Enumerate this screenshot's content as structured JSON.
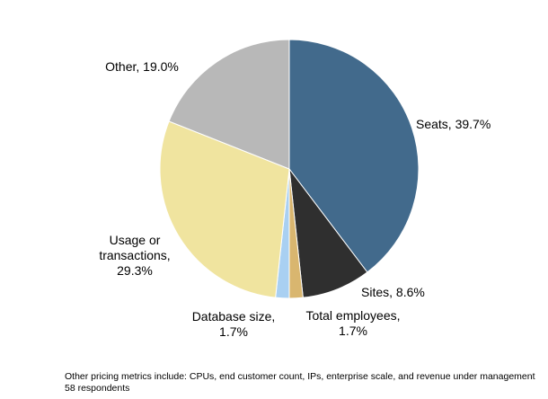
{
  "chart_data": {
    "type": "pie",
    "start_angle_deg": 0,
    "direction": "clockwise",
    "slices": [
      {
        "name": "Seats",
        "value": 39.7,
        "label_lines": [
          "Seats, 39.7%"
        ],
        "color": "#426a8c"
      },
      {
        "name": "Sites",
        "value": 8.6,
        "label_lines": [
          "Sites, 8.6%"
        ],
        "color": "#2f2f2f"
      },
      {
        "name": "Total employees",
        "value": 1.7,
        "label_lines": [
          "Total employees,",
          "1.7%"
        ],
        "color": "#d9b66f"
      },
      {
        "name": "Database size",
        "value": 1.7,
        "label_lines": [
          "Database size,",
          "1.7%"
        ],
        "color": "#a9d0f2"
      },
      {
        "name": "Usage or transactions",
        "value": 29.3,
        "label_lines": [
          "Usage or",
          "transactions,",
          "29.3%"
        ],
        "color": "#f0e49f"
      },
      {
        "name": "Other",
        "value": 19.0,
        "label_lines": [
          "Other, 19.0%"
        ],
        "color": "#b8b8b8"
      }
    ],
    "footnotes": [
      "Other pricing metrics include: CPUs, end customer count, IPs, enterprise scale, and revenue under management",
      "58 respondents"
    ]
  }
}
